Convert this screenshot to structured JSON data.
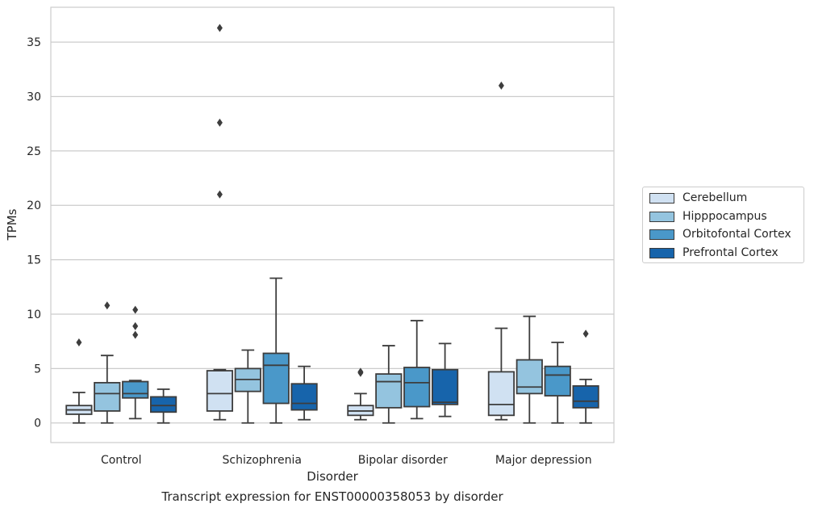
{
  "chart_data": {
    "type": "box",
    "title": "",
    "xlabel": "Disorder",
    "ylabel": "TPMs",
    "caption": "Transcript expression for ENST00000358053 by disorder",
    "categories": [
      "Control",
      "Schizophrenia",
      "Bipolar disorder",
      "Major depression"
    ],
    "ylim": [
      -1.8,
      38.2
    ],
    "yticks": [
      0,
      5,
      10,
      15,
      20,
      25,
      30,
      35
    ],
    "grid": true,
    "legend_position": "right",
    "series": [
      {
        "name": "Cerebellum",
        "color": "#d0e1f2",
        "boxes": [
          {
            "whisker_low": 0.0,
            "q1": 0.8,
            "median": 1.2,
            "q3": 1.6,
            "whisker_high": 2.8,
            "outliers": [
              7.4
            ]
          },
          {
            "whisker_low": 0.3,
            "q1": 1.1,
            "median": 2.7,
            "q3": 4.8,
            "whisker_high": 4.9,
            "outliers": [
              21.0,
              27.6,
              36.3
            ]
          },
          {
            "whisker_low": 0.3,
            "q1": 0.7,
            "median": 1.1,
            "q3": 1.6,
            "whisker_high": 2.7,
            "outliers": [
              4.6,
              4.7
            ]
          },
          {
            "whisker_low": 0.3,
            "q1": 0.7,
            "median": 1.7,
            "q3": 4.7,
            "whisker_high": 8.7,
            "outliers": [
              31.0
            ]
          }
        ]
      },
      {
        "name": "Hipppocampus",
        "color": "#94c4df",
        "boxes": [
          {
            "whisker_low": 0.0,
            "q1": 1.1,
            "median": 2.7,
            "q3": 3.7,
            "whisker_high": 6.2,
            "outliers": [
              10.8
            ]
          },
          {
            "whisker_low": 0.0,
            "q1": 2.9,
            "median": 4.0,
            "q3": 5.0,
            "whisker_high": 6.7,
            "outliers": []
          },
          {
            "whisker_low": 0.0,
            "q1": 1.4,
            "median": 3.8,
            "q3": 4.5,
            "whisker_high": 7.1,
            "outliers": []
          },
          {
            "whisker_low": 0.0,
            "q1": 2.7,
            "median": 3.3,
            "q3": 5.8,
            "whisker_high": 9.8,
            "outliers": []
          }
        ]
      },
      {
        "name": "Orbitofontal Cortex",
        "color": "#4a98c9",
        "boxes": [
          {
            "whisker_low": 0.4,
            "q1": 2.3,
            "median": 2.7,
            "q3": 3.8,
            "whisker_high": 3.9,
            "outliers": [
              8.1,
              8.9,
              10.4
            ]
          },
          {
            "whisker_low": 0.0,
            "q1": 1.8,
            "median": 5.3,
            "q3": 6.4,
            "whisker_high": 13.3,
            "outliers": []
          },
          {
            "whisker_low": 0.4,
            "q1": 1.5,
            "median": 3.7,
            "q3": 5.1,
            "whisker_high": 9.4,
            "outliers": []
          },
          {
            "whisker_low": 0.0,
            "q1": 2.5,
            "median": 4.4,
            "q3": 5.2,
            "whisker_high": 7.4,
            "outliers": []
          }
        ]
      },
      {
        "name": "Prefrontal Cortex",
        "color": "#1764ab",
        "boxes": [
          {
            "whisker_low": 0.0,
            "q1": 1.0,
            "median": 1.6,
            "q3": 2.4,
            "whisker_high": 3.1,
            "outliers": []
          },
          {
            "whisker_low": 0.3,
            "q1": 1.2,
            "median": 1.8,
            "q3": 3.6,
            "whisker_high": 5.2,
            "outliers": []
          },
          {
            "whisker_low": 0.6,
            "q1": 1.7,
            "median": 1.9,
            "q3": 4.9,
            "whisker_high": 7.3,
            "outliers": []
          },
          {
            "whisker_low": 0.0,
            "q1": 1.4,
            "median": 2.0,
            "q3": 3.4,
            "whisker_high": 4.0,
            "outliers": [
              8.2
            ]
          }
        ]
      }
    ]
  }
}
